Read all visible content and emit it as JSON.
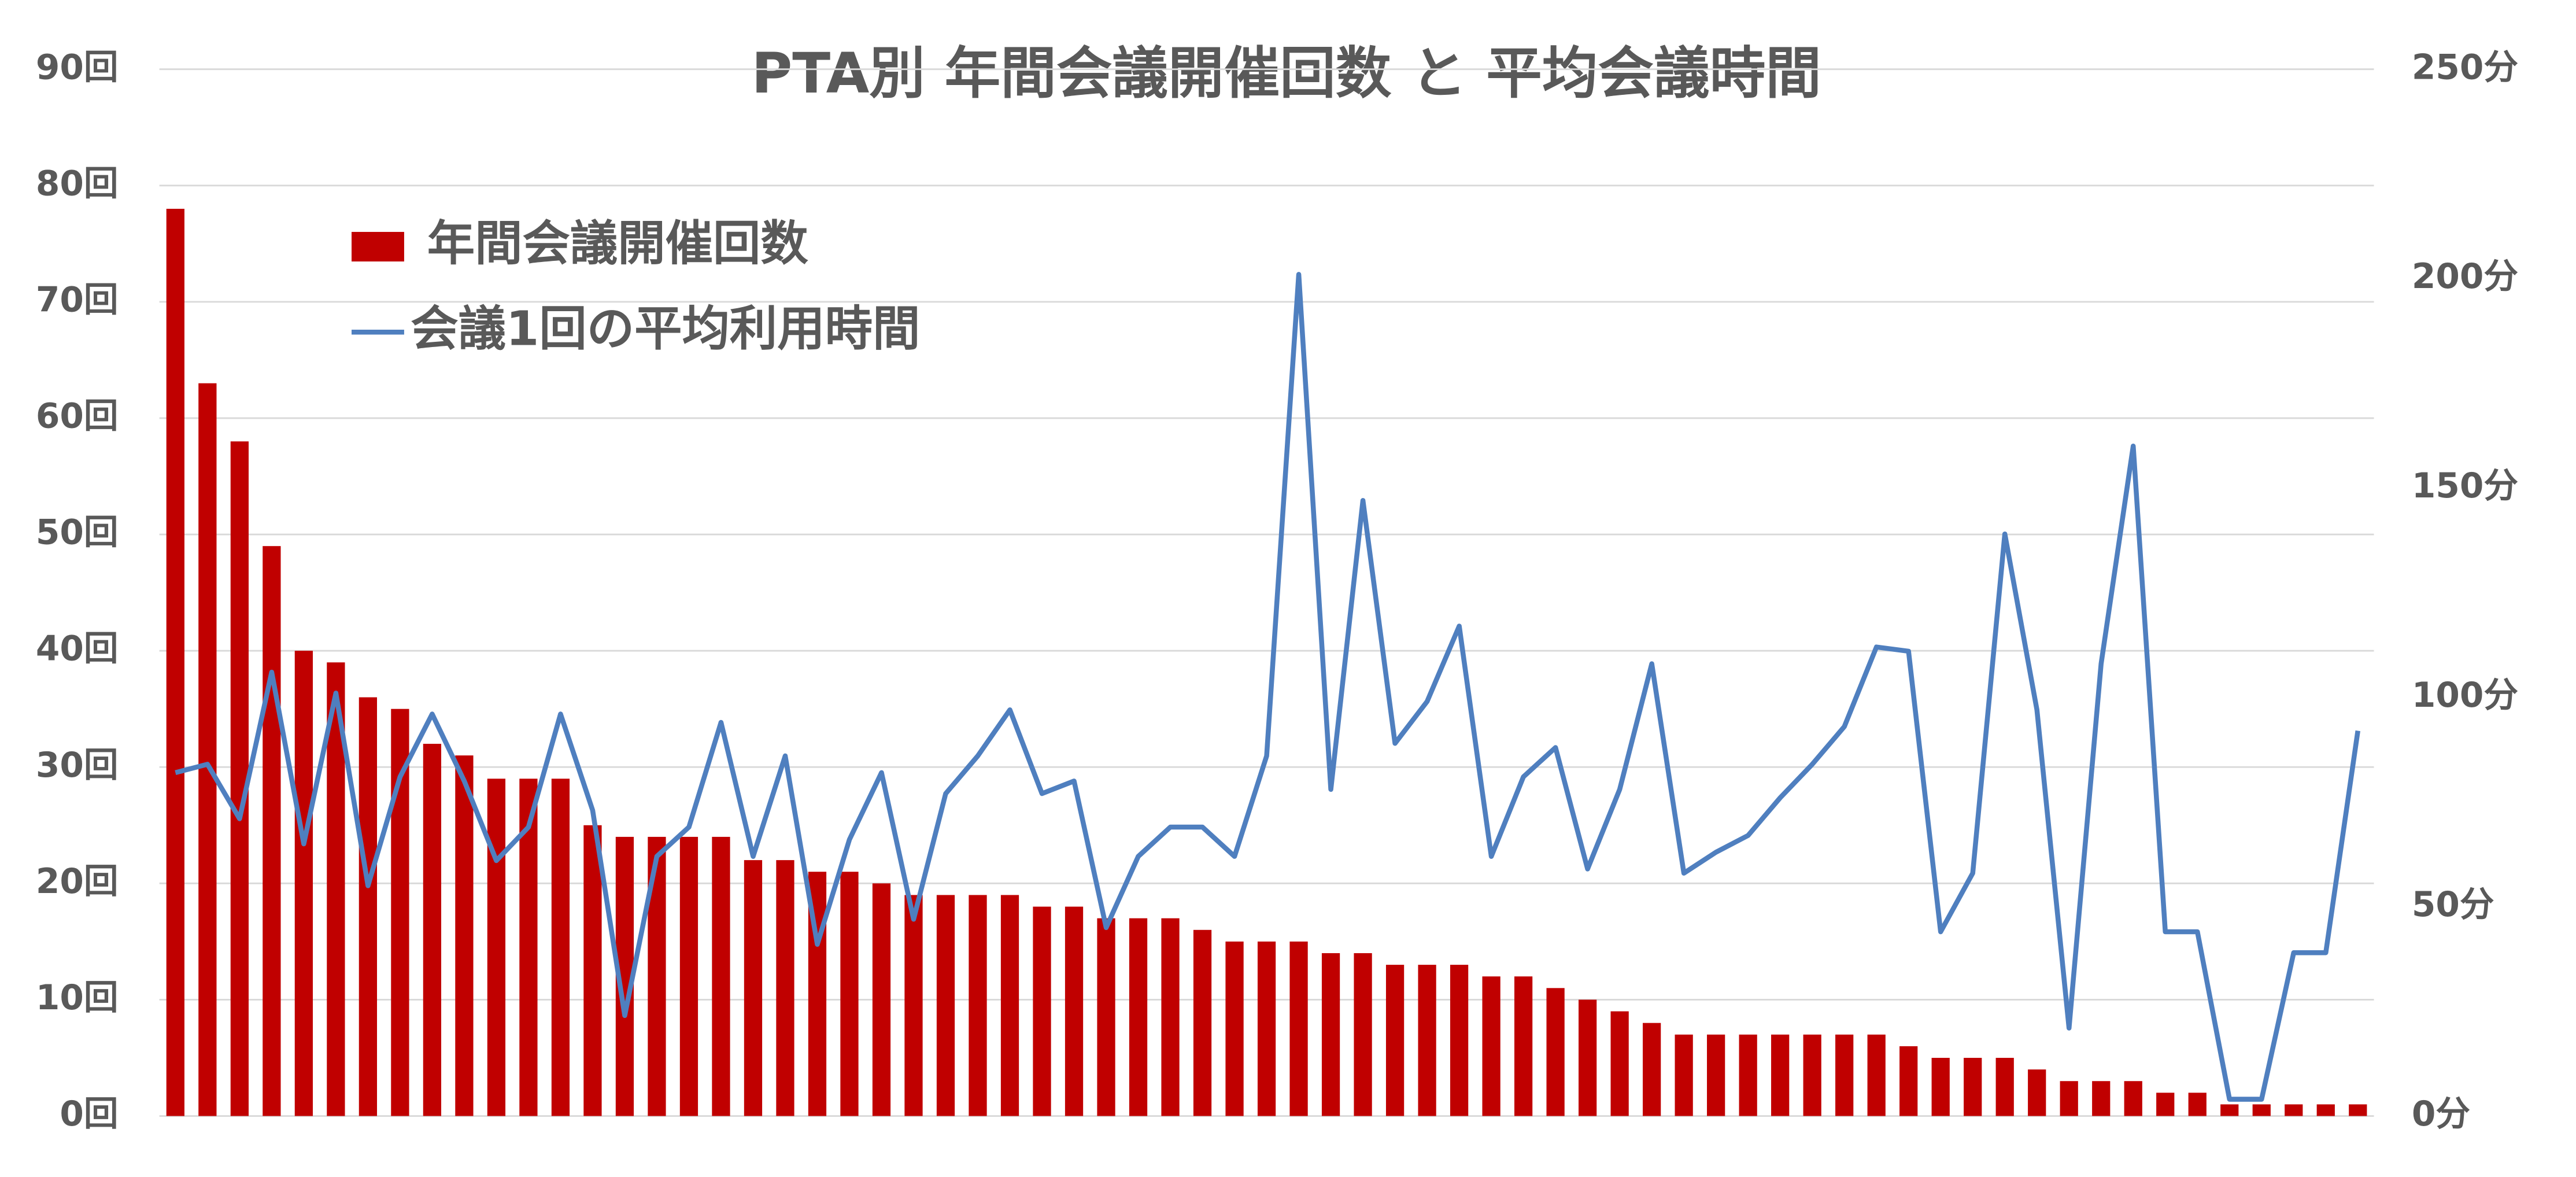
{
  "chart_data": {
    "type": "bar-line",
    "title": "PTA別 年間会議開催回数 と 平均会議時間",
    "categories": [
      null,
      null,
      null,
      null,
      null,
      null,
      null,
      null,
      null,
      null,
      null,
      null,
      null,
      null,
      null,
      null,
      null,
      null,
      null,
      null,
      null,
      null,
      null,
      null,
      null,
      null,
      null,
      null,
      null,
      null,
      null,
      null,
      null,
      null,
      null,
      null,
      null,
      null,
      null,
      null,
      null,
      null,
      null,
      null,
      null,
      null,
      null,
      null,
      null,
      null,
      null,
      null,
      null,
      null,
      null,
      null,
      null,
      null,
      null,
      null,
      null,
      null,
      null,
      null,
      null,
      null,
      null,
      null,
      null
    ],
    "series": [
      {
        "name": "年間会議開催回数",
        "type": "bar",
        "color": "#c00000",
        "values": [
          78,
          63,
          58,
          49,
          40,
          39,
          36,
          35,
          32,
          31,
          29,
          29,
          29,
          25,
          24,
          24,
          24,
          24,
          22,
          22,
          21,
          21,
          20,
          19,
          19,
          19,
          19,
          18,
          18,
          17,
          17,
          17,
          16,
          15,
          15,
          15,
          14,
          14,
          13,
          13,
          13,
          12,
          12,
          11,
          10,
          9,
          8,
          7,
          7,
          7,
          7,
          7,
          7,
          7,
          6,
          5,
          5,
          5,
          4,
          3,
          3,
          3,
          2,
          2,
          1,
          1,
          1,
          1,
          1
        ]
      },
      {
        "name": "会議1回の平均利用時間",
        "type": "line",
        "axis": "y2",
        "color": "#4f7fbf",
        "values": [
          82,
          84,
          71,
          106,
          65,
          101,
          55,
          81,
          96,
          80,
          61,
          69,
          96,
          73,
          24,
          62,
          69,
          94,
          62,
          86,
          41,
          66,
          82,
          47,
          77,
          86,
          97,
          77,
          80,
          45,
          62,
          69,
          69,
          62,
          86,
          201,
          78,
          147,
          89,
          99,
          117,
          62,
          81,
          88,
          59,
          78,
          108,
          58,
          63,
          67,
          76,
          84,
          93,
          112,
          111,
          44,
          58,
          139,
          97,
          21,
          108,
          160,
          44,
          44,
          4,
          4,
          39,
          39,
          92
        ]
      }
    ],
    "ylim": [
      0,
      90
    ],
    "yticks": [
      {
        "value": 0,
        "label": "0回"
      },
      {
        "value": 10,
        "label": "10回"
      },
      {
        "value": 20,
        "label": "20回"
      },
      {
        "value": 30,
        "label": "30回"
      },
      {
        "value": 40,
        "label": "40回"
      },
      {
        "value": 50,
        "label": "50回"
      },
      {
        "value": 60,
        "label": "60回"
      },
      {
        "value": 70,
        "label": "70回"
      },
      {
        "value": 80,
        "label": "80回"
      },
      {
        "value": 90,
        "label": "90回"
      }
    ],
    "y2lim": [
      0,
      250
    ],
    "y2ticks": [
      {
        "value": 0,
        "label": "0分"
      },
      {
        "value": 50,
        "label": "50分"
      },
      {
        "value": 100,
        "label": "100分"
      },
      {
        "value": 150,
        "label": "150分"
      },
      {
        "value": 200,
        "label": "200分"
      },
      {
        "value": 250,
        "label": "250分"
      }
    ],
    "grid": true,
    "legend": "top-left"
  }
}
